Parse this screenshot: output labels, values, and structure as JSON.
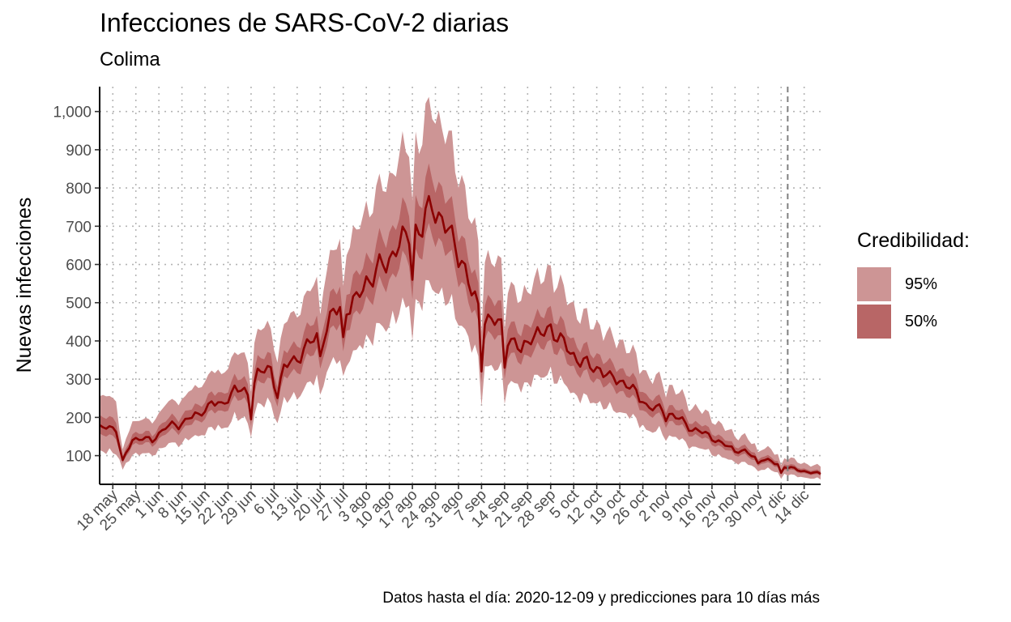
{
  "title": "Infecciones de SARS-CoV-2 diarias",
  "subtitle": "Colima",
  "caption": "Datos hasta el día: 2020-12-09 y predicciones para 10 días más",
  "legend": {
    "title": "Credibilidad:",
    "items": [
      {
        "label": "95%",
        "color": "#cd9595"
      },
      {
        "label": "50%",
        "color": "#b86666"
      }
    ]
  },
  "chart_data": {
    "type": "area",
    "title": "Infecciones de SARS-CoV-2 diarias",
    "subtitle": "Colima",
    "ylabel": "Nuevas infecciones",
    "xlabel": "",
    "x_start": "2020-05-14",
    "x_end": "2020-12-19",
    "xlim": [
      "2020-05-14",
      "2020-12-19"
    ],
    "ylim": [
      25,
      1065
    ],
    "y_ticks": [
      100,
      200,
      300,
      400,
      500,
      600,
      700,
      800,
      900,
      1000
    ],
    "y_tick_labels": [
      "100",
      "200",
      "300",
      "400",
      "500",
      "600",
      "700",
      "800",
      "900",
      "1,000"
    ],
    "x_tick_dates": [
      "2020-05-18",
      "2020-05-25",
      "2020-06-01",
      "2020-06-08",
      "2020-06-15",
      "2020-06-22",
      "2020-06-29",
      "2020-07-06",
      "2020-07-13",
      "2020-07-20",
      "2020-07-27",
      "2020-08-03",
      "2020-08-10",
      "2020-08-17",
      "2020-08-24",
      "2020-08-31",
      "2020-09-07",
      "2020-09-14",
      "2020-09-21",
      "2020-09-28",
      "2020-10-05",
      "2020-10-12",
      "2020-10-19",
      "2020-10-26",
      "2020-11-02",
      "2020-11-09",
      "2020-11-16",
      "2020-11-23",
      "2020-11-30",
      "2020-12-07",
      "2020-12-14"
    ],
    "x_tick_labels": [
      "18 may",
      "25 may",
      "1 jun",
      "8 jun",
      "15 jun",
      "22 jun",
      "29 jun",
      "6 jul",
      "13 jul",
      "20 jul",
      "27 jul",
      "3 ago",
      "10 ago",
      "17 ago",
      "24 ago",
      "31 ago",
      "7 sep",
      "14 sep",
      "21 sep",
      "28 sep",
      "5 oct",
      "12 oct",
      "19 oct",
      "26 oct",
      "2 nov",
      "9 nov",
      "16 nov",
      "23 nov",
      "30 nov",
      "7 dic",
      "14 dic"
    ],
    "prediction_start": "2020-12-09",
    "grid": true,
    "legend_position": "right",
    "line_color": "#8b0000",
    "median_keypoints": [
      [
        "2020-05-14",
        172
      ],
      [
        "2020-05-19",
        172
      ],
      [
        "2020-05-21",
        85
      ],
      [
        "2020-05-24",
        140
      ],
      [
        "2020-05-27",
        150
      ],
      [
        "2020-05-30",
        135
      ],
      [
        "2020-06-03",
        180
      ],
      [
        "2020-06-07",
        175
      ],
      [
        "2020-06-10",
        205
      ],
      [
        "2020-06-13",
        200
      ],
      [
        "2020-06-17",
        245
      ],
      [
        "2020-06-20",
        225
      ],
      [
        "2020-06-24",
        280
      ],
      [
        "2020-06-28",
        255
      ],
      [
        "2020-07-01",
        320
      ],
      [
        "2020-07-05",
        320
      ],
      [
        "2020-07-07",
        265
      ],
      [
        "2020-07-09",
        330
      ],
      [
        "2020-07-12",
        345
      ],
      [
        "2020-07-15",
        380
      ],
      [
        "2020-07-18",
        400
      ],
      [
        "2020-07-21",
        420
      ],
      [
        "2020-07-24",
        470
      ],
      [
        "2020-07-27",
        490
      ],
      [
        "2020-07-31",
        500
      ],
      [
        "2020-08-03",
        560
      ],
      [
        "2020-08-06",
        580
      ],
      [
        "2020-08-09",
        600
      ],
      [
        "2020-08-12",
        650
      ],
      [
        "2020-08-15",
        660
      ],
      [
        "2020-08-17",
        700
      ],
      [
        "2020-08-20",
        690
      ],
      [
        "2020-08-23",
        760
      ],
      [
        "2020-08-26",
        720
      ],
      [
        "2020-08-29",
        660
      ],
      [
        "2020-09-01",
        620
      ],
      [
        "2020-09-04",
        520
      ],
      [
        "2020-09-07",
        470
      ],
      [
        "2020-09-10",
        450
      ],
      [
        "2020-09-13",
        440
      ],
      [
        "2020-09-16",
        400
      ],
      [
        "2020-09-19",
        370
      ],
      [
        "2020-09-22",
        420
      ],
      [
        "2020-09-25",
        410
      ],
      [
        "2020-09-28",
        440
      ],
      [
        "2020-10-01",
        400
      ],
      [
        "2020-10-04",
        370
      ],
      [
        "2020-10-07",
        350
      ],
      [
        "2020-10-10",
        330
      ],
      [
        "2020-10-13",
        330
      ],
      [
        "2020-10-16",
        300
      ],
      [
        "2020-10-19",
        300
      ],
      [
        "2020-10-22",
        280
      ],
      [
        "2020-10-25",
        250
      ],
      [
        "2020-10-28",
        225
      ],
      [
        "2020-11-01",
        220
      ],
      [
        "2020-11-04",
        205
      ],
      [
        "2020-11-07",
        190
      ],
      [
        "2020-11-10",
        170
      ],
      [
        "2020-11-13",
        160
      ],
      [
        "2020-11-16",
        150
      ],
      [
        "2020-11-19",
        130
      ],
      [
        "2020-11-22",
        120
      ],
      [
        "2020-11-26",
        110
      ],
      [
        "2020-11-29",
        95
      ],
      [
        "2020-12-02",
        90
      ],
      [
        "2020-12-05",
        80
      ],
      [
        "2020-12-09",
        70
      ],
      [
        "2020-12-12",
        62
      ],
      [
        "2020-12-15",
        58
      ],
      [
        "2020-12-19",
        52
      ]
    ],
    "dips": [
      [
        "2020-06-29",
        195
      ],
      [
        "2020-07-20",
        360
      ],
      [
        "2020-07-27",
        410
      ],
      [
        "2020-08-17",
        560
      ],
      [
        "2020-09-07",
        320
      ],
      [
        "2020-09-14",
        330
      ],
      [
        "2020-10-26",
        240
      ],
      [
        "2020-11-02",
        190
      ],
      [
        "2020-11-09",
        165
      ],
      [
        "2020-11-16",
        140
      ],
      [
        "2020-11-23",
        110
      ],
      [
        "2020-11-30",
        80
      ],
      [
        "2020-12-07",
        55
      ]
    ]
  }
}
